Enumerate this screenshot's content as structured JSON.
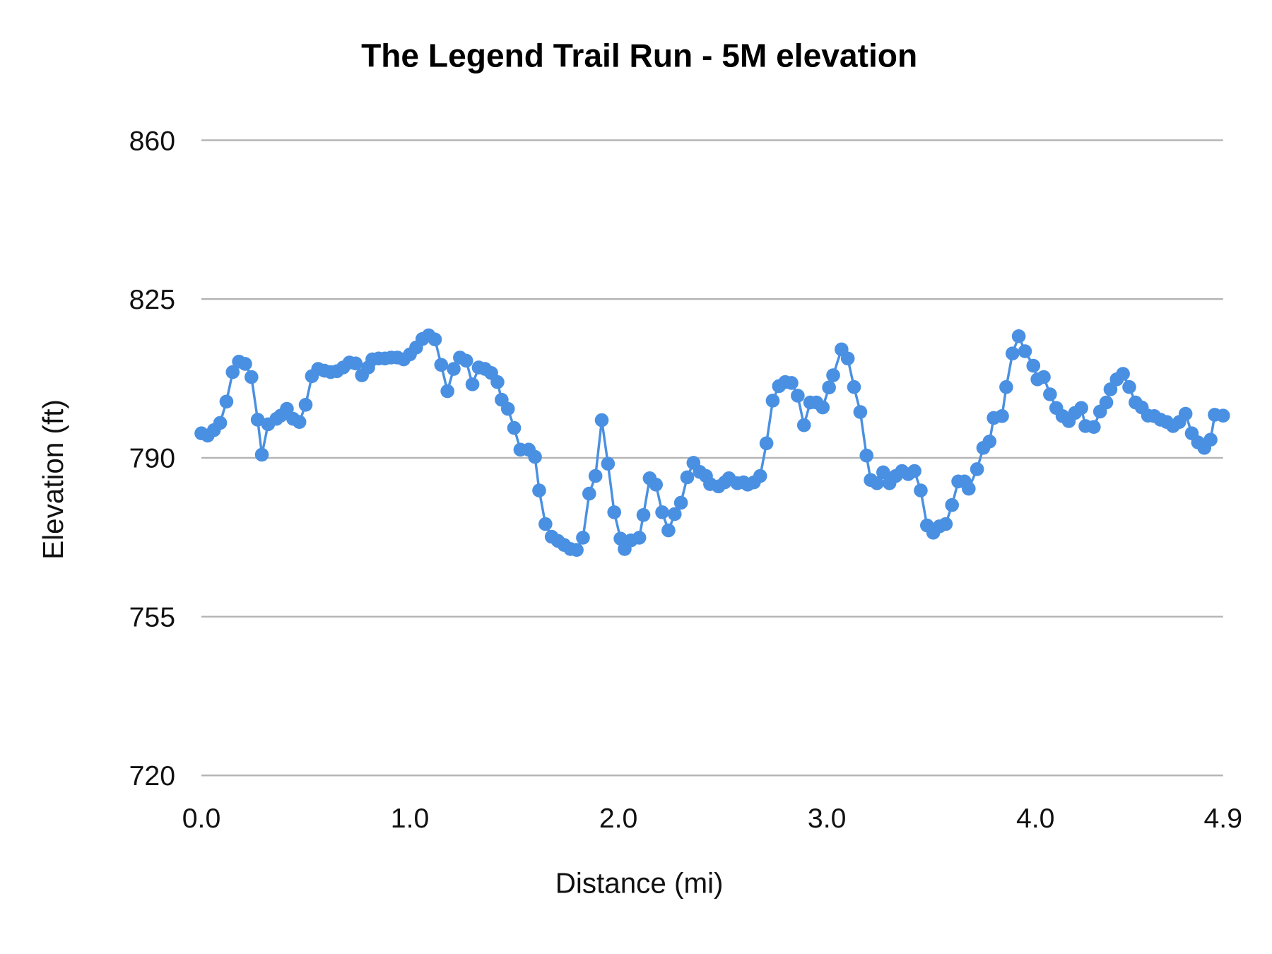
{
  "chart_data": {
    "type": "line",
    "title": "The Legend Trail Run - 5M elevation",
    "xlabel": "Distance (mi)",
    "ylabel": "Elevation (ft)",
    "xlim": [
      0.0,
      4.9
    ],
    "ylim": [
      720,
      860
    ],
    "x_ticks": [
      "0.0",
      "1.0",
      "2.0",
      "3.0",
      "4.0",
      "4.9"
    ],
    "x_tick_values": [
      0.0,
      1.0,
      2.0,
      3.0,
      4.0,
      4.9
    ],
    "y_ticks": [
      "860",
      "825",
      "790",
      "755",
      "720"
    ],
    "y_tick_values": [
      860,
      825,
      790,
      755,
      720
    ],
    "grid": "horizontal",
    "markers": true,
    "color": "#4a90e2",
    "x": [
      0.0,
      0.03,
      0.06,
      0.09,
      0.12,
      0.15,
      0.18,
      0.21,
      0.24,
      0.27,
      0.29,
      0.32,
      0.36,
      0.38,
      0.41,
      0.44,
      0.47,
      0.5,
      0.53,
      0.56,
      0.59,
      0.62,
      0.65,
      0.68,
      0.71,
      0.74,
      0.77,
      0.8,
      0.82,
      0.85,
      0.88,
      0.91,
      0.94,
      0.97,
      1.0,
      1.03,
      1.06,
      1.09,
      1.12,
      1.15,
      1.18,
      1.21,
      1.24,
      1.27,
      1.3,
      1.33,
      1.36,
      1.39,
      1.42,
      1.44,
      1.47,
      1.5,
      1.53,
      1.57,
      1.6,
      1.62,
      1.65,
      1.68,
      1.71,
      1.74,
      1.77,
      1.8,
      1.83,
      1.86,
      1.89,
      1.92,
      1.95,
      1.98,
      2.01,
      2.03,
      2.06,
      2.1,
      2.12,
      2.15,
      2.18,
      2.21,
      2.24,
      2.27,
      2.3,
      2.33,
      2.36,
      2.39,
      2.42,
      2.44,
      2.48,
      2.51,
      2.53,
      2.57,
      2.6,
      2.62,
      2.65,
      2.68,
      2.71,
      2.74,
      2.77,
      2.8,
      2.83,
      2.86,
      2.89,
      2.92,
      2.95,
      2.98,
      3.01,
      3.03,
      3.07,
      3.1,
      3.13,
      3.16,
      3.19,
      3.21,
      3.24,
      3.27,
      3.3,
      3.33,
      3.36,
      3.39,
      3.42,
      3.45,
      3.48,
      3.51,
      3.54,
      3.57,
      3.6,
      3.63,
      3.66,
      3.68,
      3.72,
      3.75,
      3.78,
      3.8,
      3.84,
      3.86,
      3.89,
      3.92,
      3.95,
      3.99,
      4.01,
      4.04,
      4.07,
      4.1,
      4.13,
      4.16,
      4.19,
      4.22,
      4.24,
      4.28,
      4.31,
      4.34,
      4.36,
      4.39,
      4.42,
      4.45,
      4.48,
      4.51,
      4.54,
      4.57,
      4.6,
      4.63,
      4.66,
      4.69,
      4.72,
      4.75,
      4.78,
      4.81,
      4.84,
      4.86,
      4.9
    ],
    "y": [
      795.4,
      794.9,
      796.1,
      797.7,
      802.4,
      808.9,
      811.2,
      810.7,
      807.8,
      798.4,
      790.7,
      797.4,
      798.6,
      799.3,
      800.8,
      798.6,
      797.9,
      801.7,
      808.0,
      809.6,
      809.2,
      808.9,
      809.1,
      809.9,
      811.0,
      810.8,
      808.2,
      809.9,
      811.7,
      811.9,
      811.9,
      812.1,
      812.1,
      811.7,
      812.8,
      814.3,
      816.2,
      817.0,
      816.1,
      810.5,
      804.7,
      809.6,
      812.1,
      811.4,
      806.2,
      809.9,
      809.6,
      808.7,
      806.7,
      802.8,
      800.8,
      796.6,
      791.8,
      791.8,
      790.2,
      782.8,
      775.4,
      772.6,
      771.7,
      770.8,
      769.9,
      769.7,
      772.4,
      782.1,
      786.0,
      798.3,
      788.7,
      778.0,
      772.2,
      769.9,
      771.8,
      772.4,
      777.4,
      785.5,
      784.1,
      778.0,
      774.0,
      777.6,
      780.1,
      785.7,
      788.9,
      786.9,
      786.0,
      784.2,
      783.7,
      784.6,
      785.5,
      784.4,
      784.6,
      784.1,
      784.6,
      786.0,
      793.2,
      802.6,
      805.8,
      806.7,
      806.5,
      803.7,
      797.2,
      802.2,
      802.2,
      801.1,
      805.5,
      808.2,
      813.9,
      811.9,
      805.6,
      800.1,
      790.5,
      785.1,
      784.4,
      786.8,
      784.4,
      786.0,
      787.1,
      786.4,
      787.1,
      782.8,
      775.1,
      773.5,
      774.9,
      775.4,
      779.6,
      784.8,
      784.8,
      783.2,
      787.5,
      792.2,
      793.6,
      798.8,
      799.2,
      805.6,
      813.0,
      816.8,
      813.5,
      810.3,
      807.3,
      807.8,
      804.0,
      801.0,
      799.2,
      798.1,
      799.9,
      801.0,
      797.0,
      796.8,
      800.2,
      802.2,
      805.1,
      807.3,
      808.5,
      805.6,
      802.2,
      801.1,
      799.3,
      799.2,
      798.4,
      797.9,
      797.0,
      797.9,
      799.7,
      795.4,
      793.4,
      792.2,
      794.0,
      799.5,
      799.3
    ]
  }
}
